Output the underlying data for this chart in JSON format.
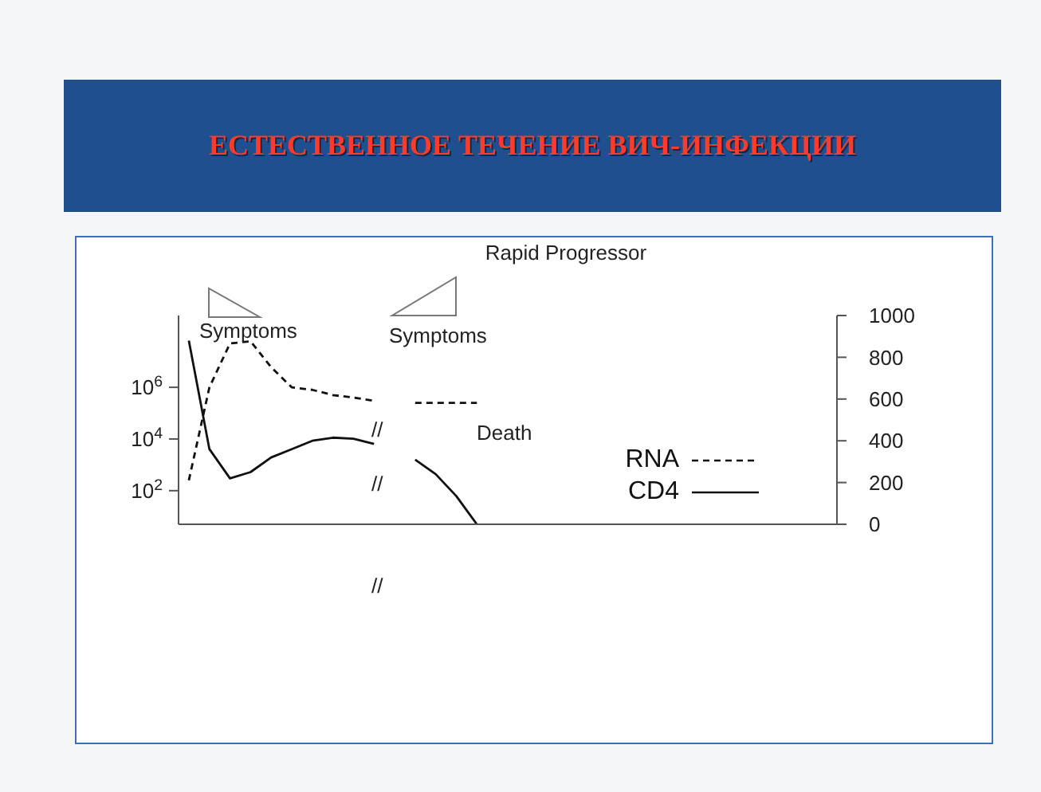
{
  "chart_data": {
    "type": "line",
    "title": "ЕСТЕСТВЕННОЕ ТЕЧЕНИЕ ВИЧ-ИНФЕКЦИИ",
    "subtitle": "Rapid Progressor",
    "categories": [
      null,
      null,
      null,
      null,
      null,
      null,
      null,
      null,
      null,
      null,
      null,
      null,
      null,
      null,
      null,
      null,
      null,
      null,
      null,
      null,
      null,
      null,
      null,
      null,
      null,
      null,
      null,
      null,
      null,
      null,
      null,
      null
    ],
    "series": [
      {
        "name": "RNA",
        "color": "#111111",
        "line_style": "dashed",
        "values": [
          250,
          1000000,
          50000000,
          60000000,
          6000000,
          1000000,
          800000,
          500000,
          400000,
          300000,
          null,
          250000,
          250000,
          250000,
          250000,
          null,
          null,
          null,
          null,
          null,
          null,
          null,
          null,
          null,
          null,
          null,
          null,
          null,
          null,
          null,
          null,
          null
        ]
      },
      {
        "name": "CD4",
        "color": "#111111",
        "line_style": "solid",
        "axis": "y2",
        "values": [
          880,
          360,
          220,
          250,
          320,
          360,
          400,
          415,
          410,
          385,
          null,
          310,
          240,
          135,
          0,
          null,
          null,
          null,
          null,
          null,
          null,
          null,
          null,
          null,
          null,
          null,
          null,
          null,
          null,
          null,
          null,
          null
        ]
      }
    ],
    "log": "y",
    "ylim": [
      5,
      600000000
    ],
    "yticks": [
      {
        "value": 100,
        "label": "10$^{2}$"
      },
      {
        "value": 10000,
        "label": "10$^{4}$"
      },
      {
        "value": 1000000,
        "label": "10$^{6}$"
      }
    ],
    "y2lim": [
      0,
      1000
    ],
    "y2ticks": [
      0,
      200,
      400,
      600,
      800,
      1000
    ],
    "tick_labels": "y",
    "legend": "right",
    "marker": "none",
    "annotations": [
      "Symptoms",
      "Symptoms",
      "Death",
      "//",
      "//",
      "//"
    ]
  }
}
